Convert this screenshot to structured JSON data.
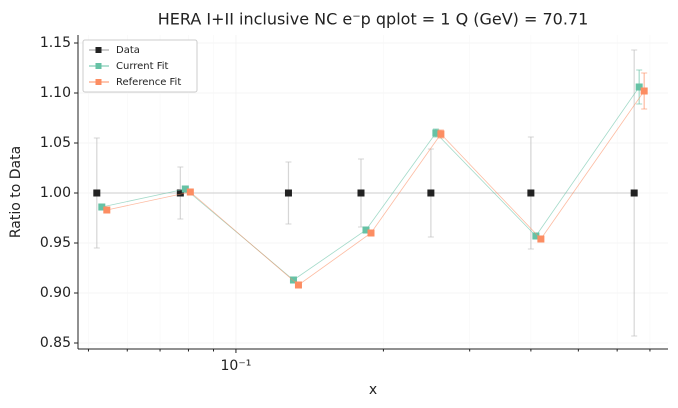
{
  "chart_data": {
    "type": "errorbar-line",
    "title": "HERA I+II inclusive NC e⁻p qplot = 1 Q (GeV) = 70.71",
    "x_label": "x",
    "y_label": "Ratio to Data",
    "x": [
      0.052,
      0.077,
      0.128,
      0.18,
      0.25,
      0.4,
      0.65
    ],
    "xscale": "log",
    "xlim": [
      0.0476,
      0.762
    ],
    "ylim": [
      0.844,
      1.158
    ],
    "xticks": [
      {
        "value": 0.1,
        "label": "10⁻¹"
      }
    ],
    "xminorticks": [
      0.05,
      0.06,
      0.07,
      0.08,
      0.09,
      0.2,
      0.3,
      0.4,
      0.5,
      0.6,
      0.7
    ],
    "yticks": [
      0.85,
      {
        "value": 0.9,
        "label": "0.90"
      },
      0.95,
      {
        "value": 1.0,
        "label": "1.00"
      },
      1.05,
      {
        "value": 1.1,
        "label": "1.10"
      },
      1.15
    ],
    "grid": true,
    "legend": "upper left",
    "series": [
      {
        "name": "Data",
        "color": "#222222",
        "values": [
          1.0,
          1.0,
          1.0,
          1.0,
          1.0,
          1.0,
          1.0
        ],
        "errors": [
          0.055,
          0.026,
          0.031,
          0.034,
          0.044,
          0.056,
          0.143
        ]
      },
      {
        "name": "Current Fit",
        "color": "#66c2a5",
        "values": [
          0.986,
          1.004,
          0.913,
          0.963,
          1.06,
          0.957,
          1.106
        ],
        "errors": [
          0.003,
          0.003,
          0.003,
          0.003,
          0.004,
          0.003,
          0.017
        ]
      },
      {
        "name": "Reference Fit",
        "color": "#fc8d62",
        "values": [
          0.983,
          1.001,
          0.908,
          0.96,
          1.059,
          0.954,
          1.102
        ],
        "errors": [
          0.003,
          0.003,
          0.003,
          0.003,
          0.004,
          0.003,
          0.018
        ]
      }
    ]
  }
}
